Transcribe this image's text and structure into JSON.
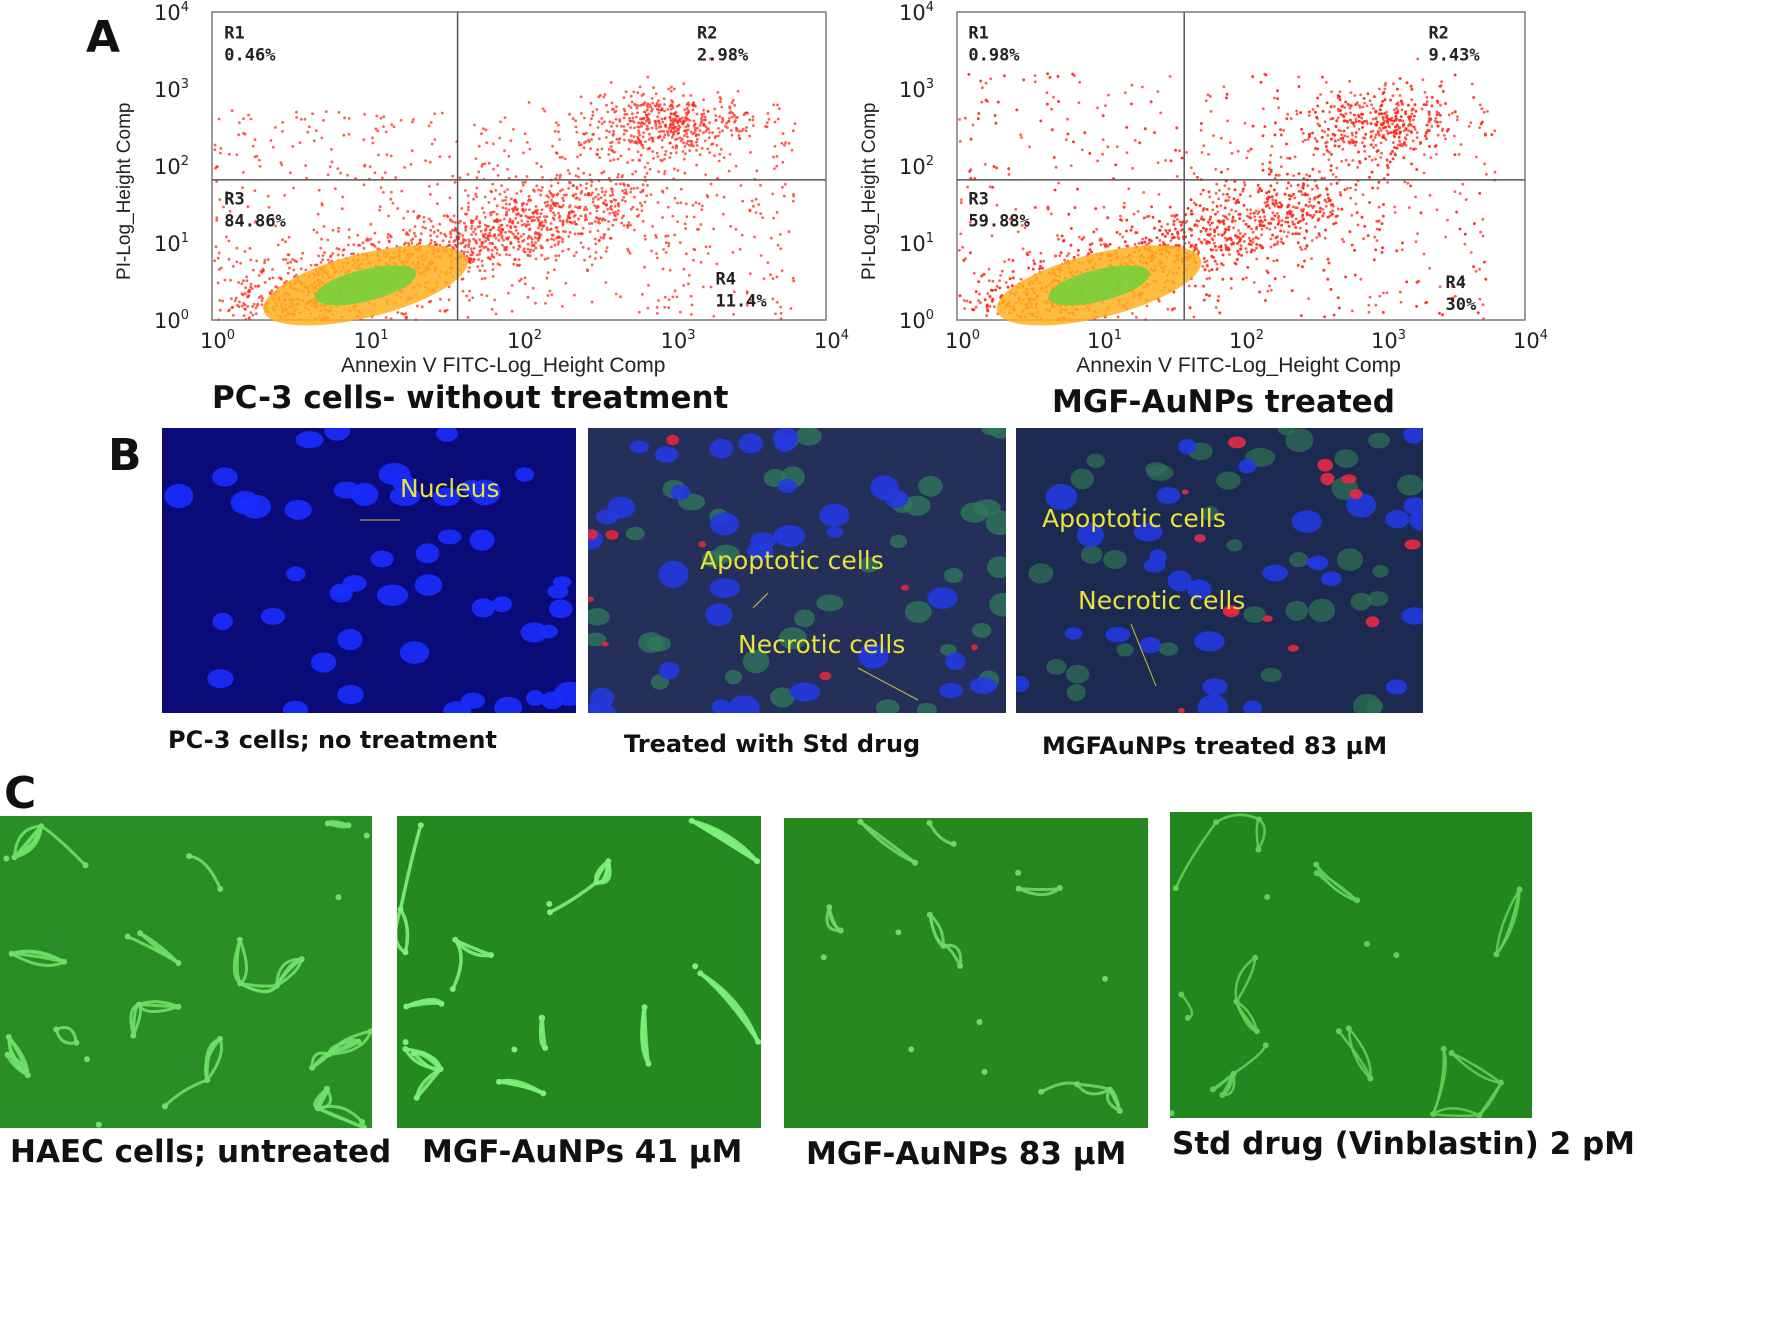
{
  "panel_a": {
    "letter": "A",
    "xlabel": "Annexin V FITC-Log_Height Comp",
    "ylabel": "PI-Log_Height Comp",
    "tick_base": "10",
    "tick_exps": [
      "0",
      "1",
      "2",
      "3",
      "4"
    ],
    "plots": [
      {
        "condition": "PC-3 cells- without treatment",
        "quadrants": [
          {
            "name": "R1",
            "value": "0.46%"
          },
          {
            "name": "R2",
            "value": "2.98%"
          },
          {
            "name": "R3",
            "value": "84.86%"
          },
          {
            "name": "R4",
            "value": "11.4%"
          }
        ]
      },
      {
        "condition": "MGF-AuNPs treated",
        "quadrants": [
          {
            "name": "R1",
            "value": "0.98%"
          },
          {
            "name": "R2",
            "value": "9.43%"
          },
          {
            "name": "R3",
            "value": "59.88%"
          },
          {
            "name": "R4",
            "value": "30%"
          }
        ]
      }
    ]
  },
  "panel_b": {
    "letter": "B",
    "images": [
      {
        "caption": "PC-3 cells; no treatment",
        "labels": [
          "Nucleus"
        ]
      },
      {
        "caption": "Treated with Std drug",
        "labels": [
          "Apoptotic cells",
          "Necrotic cells"
        ]
      },
      {
        "caption": "MGFAuNPs treated 83 µM",
        "labels": [
          "Apoptotic cells",
          "Necrotic cells"
        ]
      }
    ]
  },
  "panel_c": {
    "letter": "C",
    "images": [
      {
        "caption": "HAEC cells; untreated"
      },
      {
        "caption": "MGF-AuNPs 41 µM"
      },
      {
        "caption": "MGF-AuNPs 83 µM"
      },
      {
        "caption": "Std drug (Vinblastin) 2 pM"
      }
    ]
  },
  "colors": {
    "scatter": "#ff2a1a",
    "scatter_mid": "#ffb020",
    "scatter_core": "#6fd23c",
    "nuclear_blue": "#1e3cff",
    "label_yellow": "#e8e23a",
    "haec_green": "#2a8a24"
  }
}
